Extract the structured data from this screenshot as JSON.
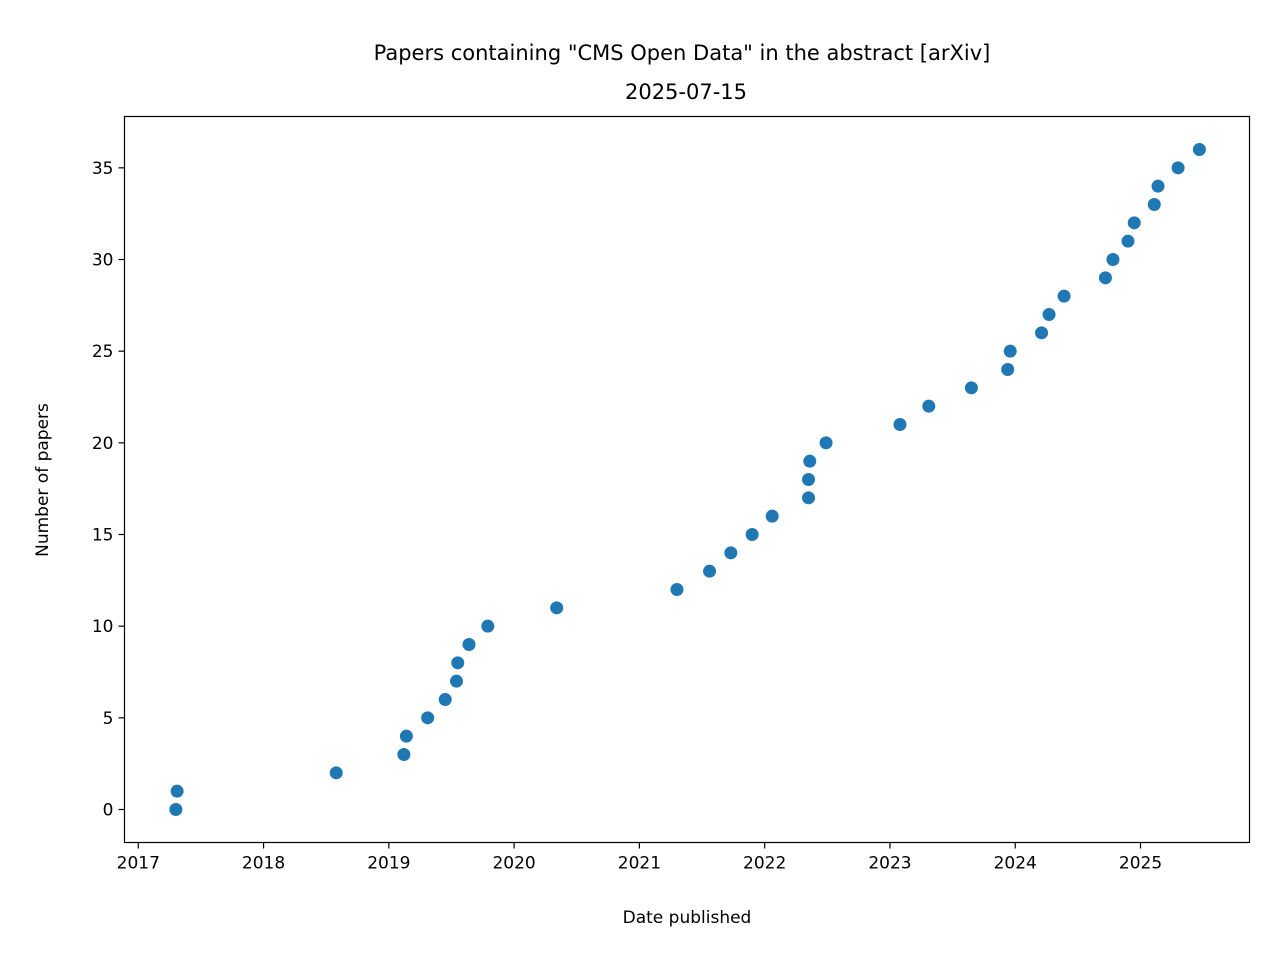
{
  "chart_data": {
    "type": "scatter",
    "title": "Papers containing \"CMS Open Data\" in the abstract [arXiv]",
    "subtitle": "2025-07-15",
    "xlabel": "Date published",
    "ylabel": "Number of papers",
    "xlim": [
      2016.89,
      2025.87
    ],
    "ylim": [
      -1.8,
      37.8
    ],
    "x_ticks": [
      2017,
      2018,
      2019,
      2020,
      2021,
      2022,
      2023,
      2024,
      2025
    ],
    "x_tick_labels": [
      "2017",
      "2018",
      "2019",
      "2020",
      "2021",
      "2022",
      "2023",
      "2024",
      "2025"
    ],
    "y_ticks": [
      0,
      5,
      10,
      15,
      20,
      25,
      30,
      35
    ],
    "y_tick_labels": [
      "0",
      "5",
      "10",
      "15",
      "20",
      "25",
      "30",
      "35"
    ],
    "marker_color": "#1f77b4",
    "grid": false,
    "points": [
      {
        "x": 2017.3,
        "y": 0
      },
      {
        "x": 2017.31,
        "y": 1
      },
      {
        "x": 2018.58,
        "y": 2
      },
      {
        "x": 2019.12,
        "y": 3
      },
      {
        "x": 2019.14,
        "y": 4
      },
      {
        "x": 2019.31,
        "y": 5
      },
      {
        "x": 2019.45,
        "y": 6
      },
      {
        "x": 2019.54,
        "y": 7
      },
      {
        "x": 2019.55,
        "y": 8
      },
      {
        "x": 2019.64,
        "y": 9
      },
      {
        "x": 2019.79,
        "y": 10
      },
      {
        "x": 2020.34,
        "y": 11
      },
      {
        "x": 2021.3,
        "y": 12
      },
      {
        "x": 2021.56,
        "y": 13
      },
      {
        "x": 2021.73,
        "y": 14
      },
      {
        "x": 2021.9,
        "y": 15
      },
      {
        "x": 2022.06,
        "y": 16
      },
      {
        "x": 2022.35,
        "y": 17
      },
      {
        "x": 2022.35,
        "y": 18
      },
      {
        "x": 2022.36,
        "y": 19
      },
      {
        "x": 2022.49,
        "y": 20
      },
      {
        "x": 2023.08,
        "y": 21
      },
      {
        "x": 2023.31,
        "y": 22
      },
      {
        "x": 2023.65,
        "y": 23
      },
      {
        "x": 2023.94,
        "y": 24
      },
      {
        "x": 2023.96,
        "y": 25
      },
      {
        "x": 2024.21,
        "y": 26
      },
      {
        "x": 2024.27,
        "y": 27
      },
      {
        "x": 2024.39,
        "y": 28
      },
      {
        "x": 2024.72,
        "y": 29
      },
      {
        "x": 2024.78,
        "y": 30
      },
      {
        "x": 2024.9,
        "y": 31
      },
      {
        "x": 2024.95,
        "y": 32
      },
      {
        "x": 2025.11,
        "y": 33
      },
      {
        "x": 2025.14,
        "y": 34
      },
      {
        "x": 2025.3,
        "y": 35
      },
      {
        "x": 2025.47,
        "y": 36
      }
    ]
  }
}
